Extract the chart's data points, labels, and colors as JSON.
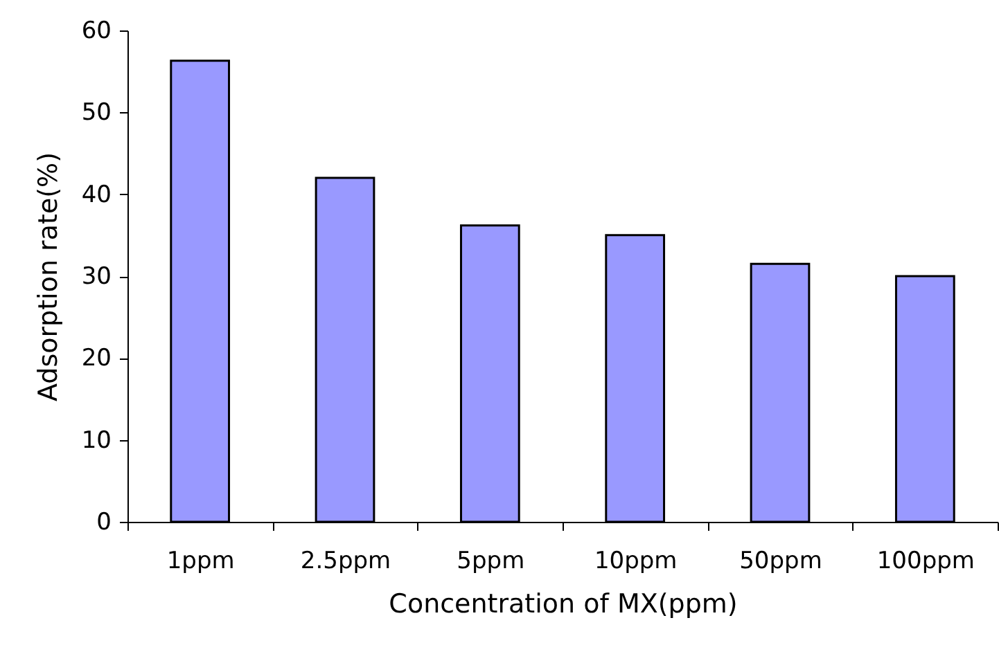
{
  "chart_data": {
    "type": "bar",
    "xlabel": "Concentration of MX(ppm)",
    "ylabel": "Adsorption rate(%)",
    "categories": [
      "1ppm",
      "2.5ppm",
      "5ppm",
      "10ppm",
      "50ppm",
      "100ppm"
    ],
    "values": [
      56.3,
      42,
      36.2,
      35,
      31.5,
      30
    ],
    "color": "#9999ff",
    "ylim": [
      0,
      60
    ],
    "yticks": [
      0,
      10,
      20,
      30,
      40,
      50,
      60
    ],
    "grid": false
  }
}
